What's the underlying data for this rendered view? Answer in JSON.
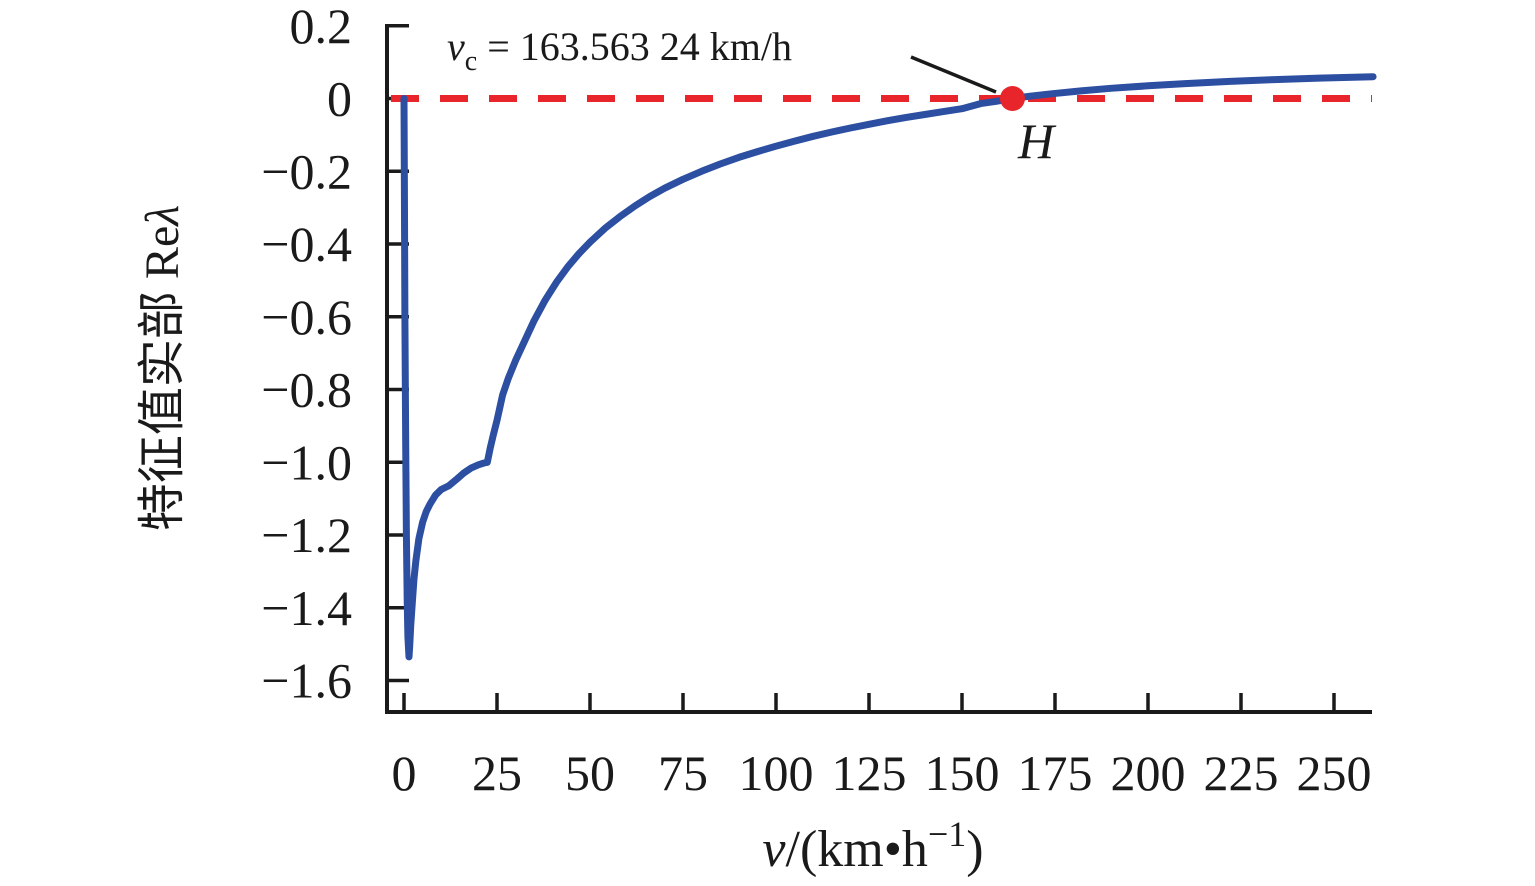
{
  "figure": {
    "background": "#ffffff",
    "axis_color": "#1a1a1a",
    "ylabel_cn": "特征值实部",
    "ylabel_re": " Re",
    "ylabel_lambda": "λ",
    "xlabel_v": "v",
    "xlabel_mid": "/(km•h",
    "xlabel_sup": "−1",
    "xlabel_close": ")",
    "annotation_v": "v",
    "annotation_sub": "c",
    "annotation_rest": " = 163.563 24 km/h",
    "point_label": "H"
  },
  "chart_data": {
    "type": "line",
    "title": "",
    "xlabel": "v/(km·h⁻¹)",
    "ylabel": "特征值实部 Reλ",
    "xlim": [
      -4.6,
      260.6
    ],
    "ylim": [
      -1.695,
      0.202
    ],
    "grid": false,
    "x_tick_values": [
      0,
      25,
      50,
      75,
      100,
      125,
      150,
      175,
      200,
      225,
      250
    ],
    "x_tick_labels": [
      "0",
      "25",
      "50",
      "75",
      "100",
      "125",
      "150",
      "175",
      "200",
      "225",
      "250"
    ],
    "y_tick_values": [
      0.2,
      0,
      -0.2,
      -0.4,
      -0.6,
      -0.8,
      -1.0,
      -1.2,
      -1.4,
      -1.6
    ],
    "y_tick_labels": [
      "0.2",
      "0",
      "−0.2",
      "−0.4",
      "−0.6",
      "−0.8",
      "−1.0",
      "−1.2",
      "−1.4",
      "−1.6"
    ],
    "zero_line": {
      "y": 0,
      "color": "#e8252b",
      "style": "dashed"
    },
    "critical_point": {
      "v": 163.56324,
      "re_lambda": 0,
      "label": "H",
      "color": "#e8252b"
    },
    "annotation_text": "v_c = 163.563 24 km/h",
    "series": [
      {
        "name": "Reλ",
        "color": "#2d4fa2",
        "points": [
          [
            0,
            0
          ],
          [
            0.1,
            -0.25
          ],
          [
            0.25,
            -0.6
          ],
          [
            0.45,
            -0.95
          ],
          [
            0.65,
            -1.2
          ],
          [
            0.85,
            -1.38
          ],
          [
            1.05,
            -1.48
          ],
          [
            1.34,
            -1.535
          ],
          [
            1.55,
            -1.5
          ],
          [
            1.8,
            -1.45
          ],
          [
            2.2,
            -1.39
          ],
          [
            2.7,
            -1.32
          ],
          [
            3.2,
            -1.27
          ],
          [
            4,
            -1.21
          ],
          [
            5,
            -1.165
          ],
          [
            6,
            -1.135
          ],
          [
            7,
            -1.115
          ],
          [
            8.5,
            -1.09
          ],
          [
            10,
            -1.075
          ],
          [
            12,
            -1.065
          ],
          [
            14,
            -1.048
          ],
          [
            16,
            -1.03
          ],
          [
            18,
            -1.016
          ],
          [
            20,
            -1.007
          ],
          [
            21.5,
            -1.002
          ],
          [
            22.4,
            -1.0
          ],
          [
            23.2,
            -0.96
          ],
          [
            24,
            -0.925
          ],
          [
            25,
            -0.885
          ],
          [
            26.5,
            -0.815
          ],
          [
            28,
            -0.77
          ],
          [
            30,
            -0.72
          ],
          [
            32.5,
            -0.665
          ],
          [
            35,
            -0.61
          ],
          [
            38,
            -0.553
          ],
          [
            41,
            -0.505
          ],
          [
            44,
            -0.463
          ],
          [
            47,
            -0.427
          ],
          [
            50,
            -0.395
          ],
          [
            54,
            -0.357
          ],
          [
            58,
            -0.325
          ],
          [
            62,
            -0.296
          ],
          [
            66,
            -0.27
          ],
          [
            70,
            -0.247
          ],
          [
            75,
            -0.222
          ],
          [
            80,
            -0.2
          ],
          [
            85,
            -0.18
          ],
          [
            90,
            -0.162
          ],
          [
            95,
            -0.146
          ],
          [
            100,
            -0.131
          ],
          [
            105,
            -0.117
          ],
          [
            110,
            -0.104
          ],
          [
            115,
            -0.092
          ],
          [
            120,
            -0.081
          ],
          [
            125,
            -0.071
          ],
          [
            130,
            -0.061
          ],
          [
            135,
            -0.052
          ],
          [
            140,
            -0.044
          ],
          [
            145,
            -0.036
          ],
          [
            150,
            -0.028
          ],
          [
            155,
            -0.014
          ],
          [
            159,
            -0.008
          ],
          [
            163.56324,
            0
          ],
          [
            168,
            0.006
          ],
          [
            174,
            0.013
          ],
          [
            182,
            0.021
          ],
          [
            190,
            0.028
          ],
          [
            200,
            0.035
          ],
          [
            210,
            0.041
          ],
          [
            222,
            0.047
          ],
          [
            234,
            0.052
          ],
          [
            246,
            0.056
          ],
          [
            260.5,
            0.06
          ]
        ]
      }
    ]
  }
}
